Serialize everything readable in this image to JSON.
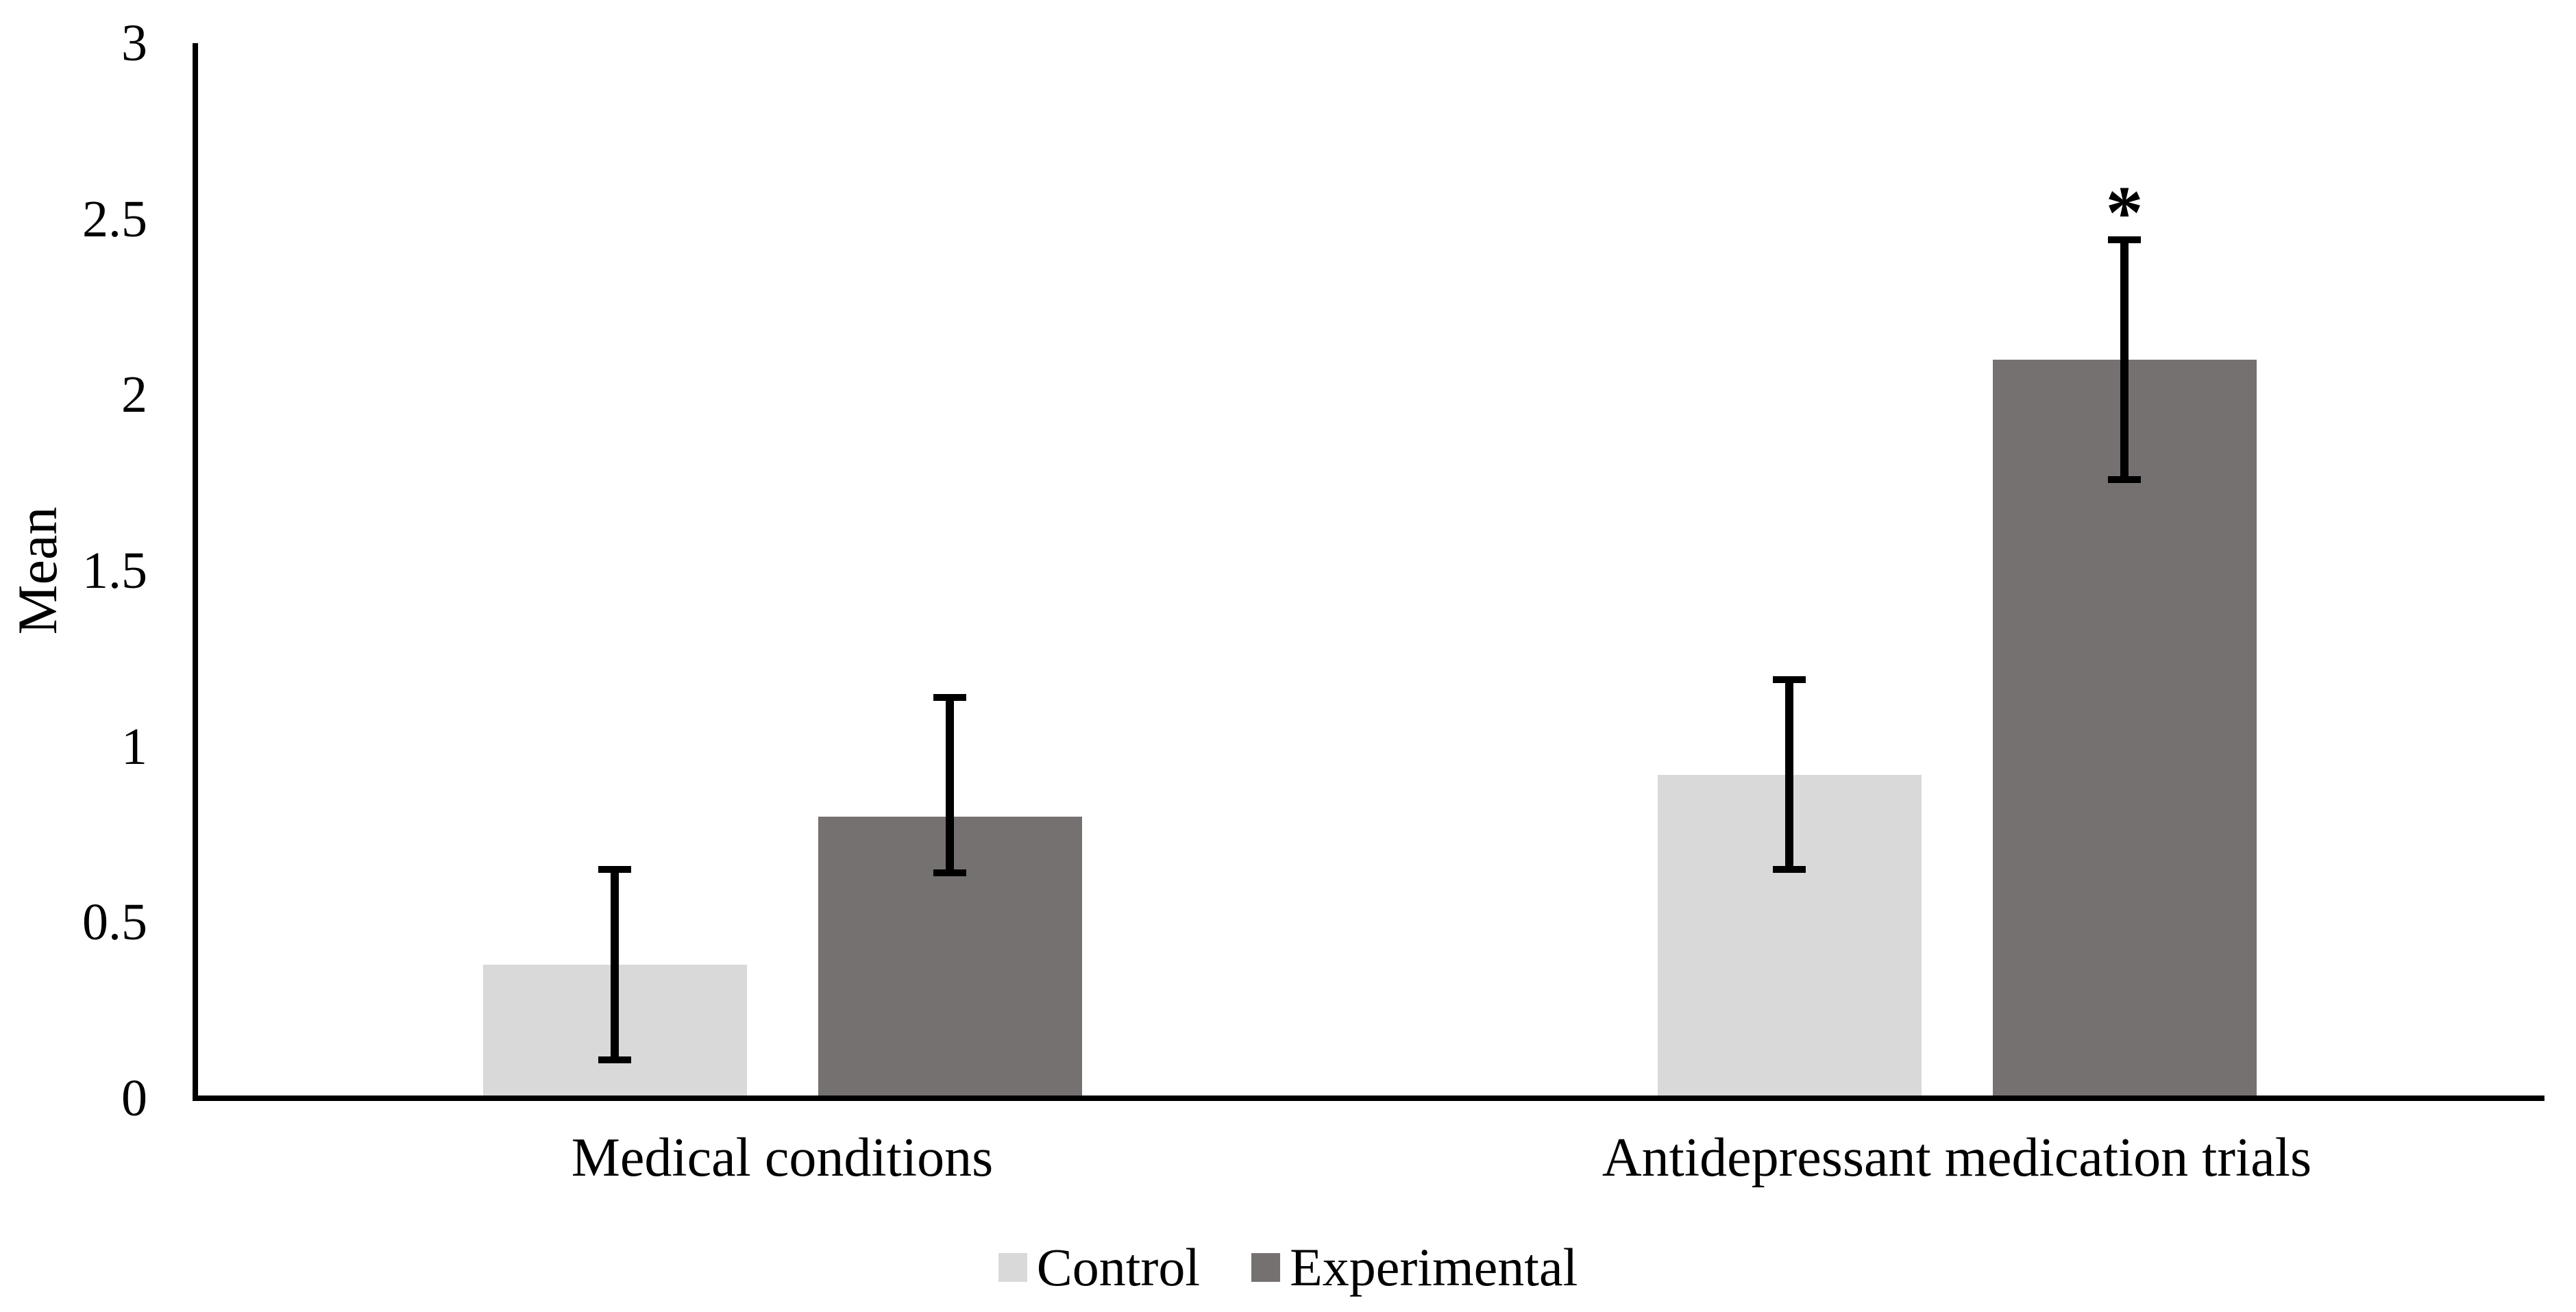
{
  "chart_data": {
    "type": "bar",
    "title": "",
    "ylabel": "Mean",
    "xlabel": "",
    "ylim": [
      0,
      3
    ],
    "ytick_values": [
      0,
      0.5,
      1,
      1.5,
      2,
      2.5,
      3
    ],
    "ytick_labels": [
      "0",
      "0.5",
      "1",
      "1.5",
      "2",
      "2.5",
      "3"
    ],
    "grid": false,
    "legend_position": "bottom-center",
    "axis_color": "#000000",
    "categories": [
      "Medical conditions",
      "Antidepressant medication trials"
    ],
    "series": [
      {
        "name": "Control",
        "color": "#d9d9d9",
        "values": [
          0.38,
          0.92
        ],
        "error_plus": [
          0.27,
          0.27
        ],
        "error_minus": [
          0.27,
          0.27
        ]
      },
      {
        "name": "Experimental",
        "color": "#767171",
        "values": [
          0.8,
          2.1
        ],
        "error_plus": [
          0.34,
          0.34
        ],
        "error_minus": [
          0.16,
          0.34
        ]
      }
    ],
    "annotations": [
      {
        "text": "*",
        "category_index": 1,
        "series_index": 1
      }
    ]
  }
}
